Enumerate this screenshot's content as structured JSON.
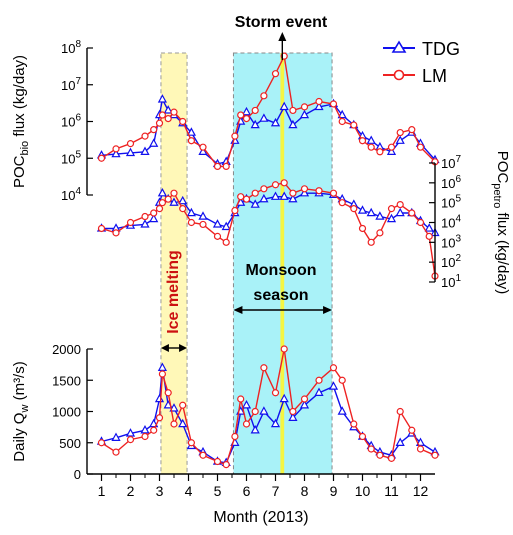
{
  "chart_data": [
    {
      "type": "line",
      "panel": "POC bio flux",
      "ylabel_main": "POC",
      "ylabel_sub": "bio",
      "ylabel_tail": " flux (kg/day)",
      "yscale": "log",
      "ylim": [
        10000,
        100000000
      ],
      "ytick_labels": [
        {
          "base": "10",
          "exp": "4",
          "value": 10000
        },
        {
          "base": "10",
          "exp": "5",
          "value": 100000
        },
        {
          "base": "10",
          "exp": "6",
          "value": 1000000
        },
        {
          "base": "10",
          "exp": "7",
          "value": 10000000
        },
        {
          "base": "10",
          "exp": "8",
          "value": 100000000
        }
      ],
      "x": [
        1,
        1.5,
        2,
        2.5,
        2.8,
        3,
        3.1,
        3.3,
        3.5,
        3.8,
        4.1,
        4.5,
        5,
        5.3,
        5.6,
        5.8,
        6,
        6.3,
        6.6,
        7,
        7.3,
        7.6,
        8,
        8.5,
        9,
        9.3,
        9.7,
        10,
        10.3,
        10.6,
        11,
        11.3,
        11.7,
        12,
        12.5
      ],
      "series": [
        {
          "name": "TDG",
          "values": [
            120000,
            130000,
            140000,
            150000,
            250000,
            1500000,
            4000000,
            2000000,
            1500000,
            900000,
            500000,
            150000,
            70000,
            80000,
            300000,
            1000000,
            1800000,
            800000,
            1200000,
            900000,
            2500000,
            800000,
            1500000,
            2500000,
            3000000,
            1500000,
            800000,
            400000,
            300000,
            200000,
            150000,
            300000,
            500000,
            250000,
            90000
          ]
        },
        {
          "name": "LM",
          "values": [
            100000,
            180000,
            250000,
            400000,
            600000,
            900000,
            1500000,
            1200000,
            1800000,
            1000000,
            300000,
            200000,
            60000,
            60000,
            400000,
            1500000,
            1200000,
            2000000,
            5000000,
            20000000,
            60000000,
            2000000,
            2500000,
            3500000,
            3000000,
            1000000,
            800000,
            300000,
            200000,
            150000,
            200000,
            500000,
            600000,
            200000,
            80000
          ]
        }
      ]
    },
    {
      "type": "line",
      "panel": "POC petro flux",
      "ylabel_main": "POC",
      "ylabel_sub": "petro",
      "ylabel_tail": " flux (kg/day)",
      "yscale": "log",
      "ylim": [
        10,
        10000000
      ],
      "ytick_labels": [
        {
          "base": "10",
          "exp": "1",
          "value": 10
        },
        {
          "base": "10",
          "exp": "2",
          "value": 100
        },
        {
          "base": "10",
          "exp": "3",
          "value": 1000
        },
        {
          "base": "10",
          "exp": "4",
          "value": 10000
        },
        {
          "base": "10",
          "exp": "5",
          "value": 100000
        },
        {
          "base": "10",
          "exp": "6",
          "value": 1000000
        },
        {
          "base": "10",
          "exp": "7",
          "value": 10000000
        }
      ],
      "x": [
        1,
        1.5,
        2,
        2.5,
        2.8,
        3,
        3.1,
        3.3,
        3.5,
        3.8,
        4.1,
        4.5,
        5,
        5.3,
        5.6,
        5.8,
        6,
        6.3,
        6.6,
        7,
        7.3,
        7.6,
        8,
        8.5,
        9,
        9.3,
        9.7,
        10,
        10.3,
        10.6,
        11,
        11.3,
        11.7,
        12,
        12.3,
        12.5
      ],
      "series": [
        {
          "name": "TDG",
          "values": [
            5000,
            5000,
            7000,
            8000,
            15000,
            100000,
            300000,
            150000,
            100000,
            120000,
            30000,
            20000,
            8000,
            6000,
            30000,
            100000,
            150000,
            80000,
            150000,
            200000,
            200000,
            150000,
            300000,
            300000,
            250000,
            150000,
            80000,
            40000,
            30000,
            20000,
            15000,
            30000,
            30000,
            12000,
            5000,
            3000
          ]
        },
        {
          "name": "LM",
          "values": [
            5000,
            3000,
            10000,
            20000,
            30000,
            50000,
            100000,
            150000,
            300000,
            50000,
            10000,
            8000,
            2000,
            1000,
            40000,
            200000,
            150000,
            300000,
            500000,
            800000,
            1000000,
            300000,
            500000,
            400000,
            300000,
            100000,
            50000,
            5000,
            1000,
            3000,
            50000,
            80000,
            30000,
            10000,
            2000,
            20
          ]
        }
      ]
    },
    {
      "type": "line",
      "panel": "Daily Qw",
      "ylabel_main": "Daily Q",
      "ylabel_sub": "w",
      "ylabel_tail": " (m³/s)",
      "ylim": [
        0,
        2000
      ],
      "yticks": [
        0,
        500,
        1000,
        1500,
        2000
      ],
      "xlabel": "Month (2013)",
      "xticks": [
        1,
        2,
        3,
        4,
        5,
        6,
        7,
        8,
        9,
        10,
        11,
        12
      ],
      "x": [
        1,
        1.5,
        2,
        2.5,
        2.8,
        3,
        3.1,
        3.3,
        3.5,
        3.8,
        4.1,
        4.5,
        5,
        5.3,
        5.6,
        5.8,
        6,
        6.3,
        6.6,
        7,
        7.3,
        7.6,
        8,
        8.5,
        9,
        9.3,
        9.7,
        10,
        10.3,
        10.6,
        11,
        11.3,
        11.7,
        12,
        12.5
      ],
      "series": [
        {
          "name": "TDG",
          "values": [
            520,
            580,
            650,
            700,
            800,
            1200,
            1700,
            1100,
            1050,
            800,
            450,
            350,
            200,
            180,
            500,
            1000,
            1100,
            700,
            1000,
            800,
            1200,
            900,
            1100,
            1300,
            1400,
            1000,
            750,
            600,
            450,
            350,
            300,
            500,
            650,
            500,
            350
          ]
        },
        {
          "name": "LM",
          "values": [
            500,
            350,
            550,
            600,
            700,
            900,
            1600,
            1300,
            800,
            1100,
            500,
            300,
            200,
            150,
            600,
            1200,
            800,
            1000,
            1700,
            1300,
            2000,
            1000,
            1200,
            1500,
            1700,
            1500,
            800,
            600,
            400,
            300,
            250,
            1000,
            700,
            400,
            300
          ]
        }
      ]
    }
  ],
  "annotations": {
    "storm_event": "Storm event",
    "ice_melting": "Ice melting",
    "monsoon_line1": "Monsoon",
    "monsoon_line2": "season"
  },
  "shaded_regions": {
    "ice_melting": {
      "from": 3.05,
      "to": 3.95,
      "color": "#fff8b8"
    },
    "monsoon": {
      "from": 5.55,
      "to": 8.95,
      "color": "#a9f2f8"
    },
    "storm": {
      "from": 7.17,
      "to": 7.3,
      "color": "#f5f542"
    }
  },
  "legend": {
    "position": "top-right",
    "entries": [
      {
        "label": "TDG",
        "color": "#1010ee",
        "marker": "triangle"
      },
      {
        "label": "LM",
        "color": "#ee2222",
        "marker": "circle"
      }
    ]
  },
  "colors": {
    "TDG": "#1010ee",
    "LM": "#ee2222",
    "axis": "#000000"
  }
}
